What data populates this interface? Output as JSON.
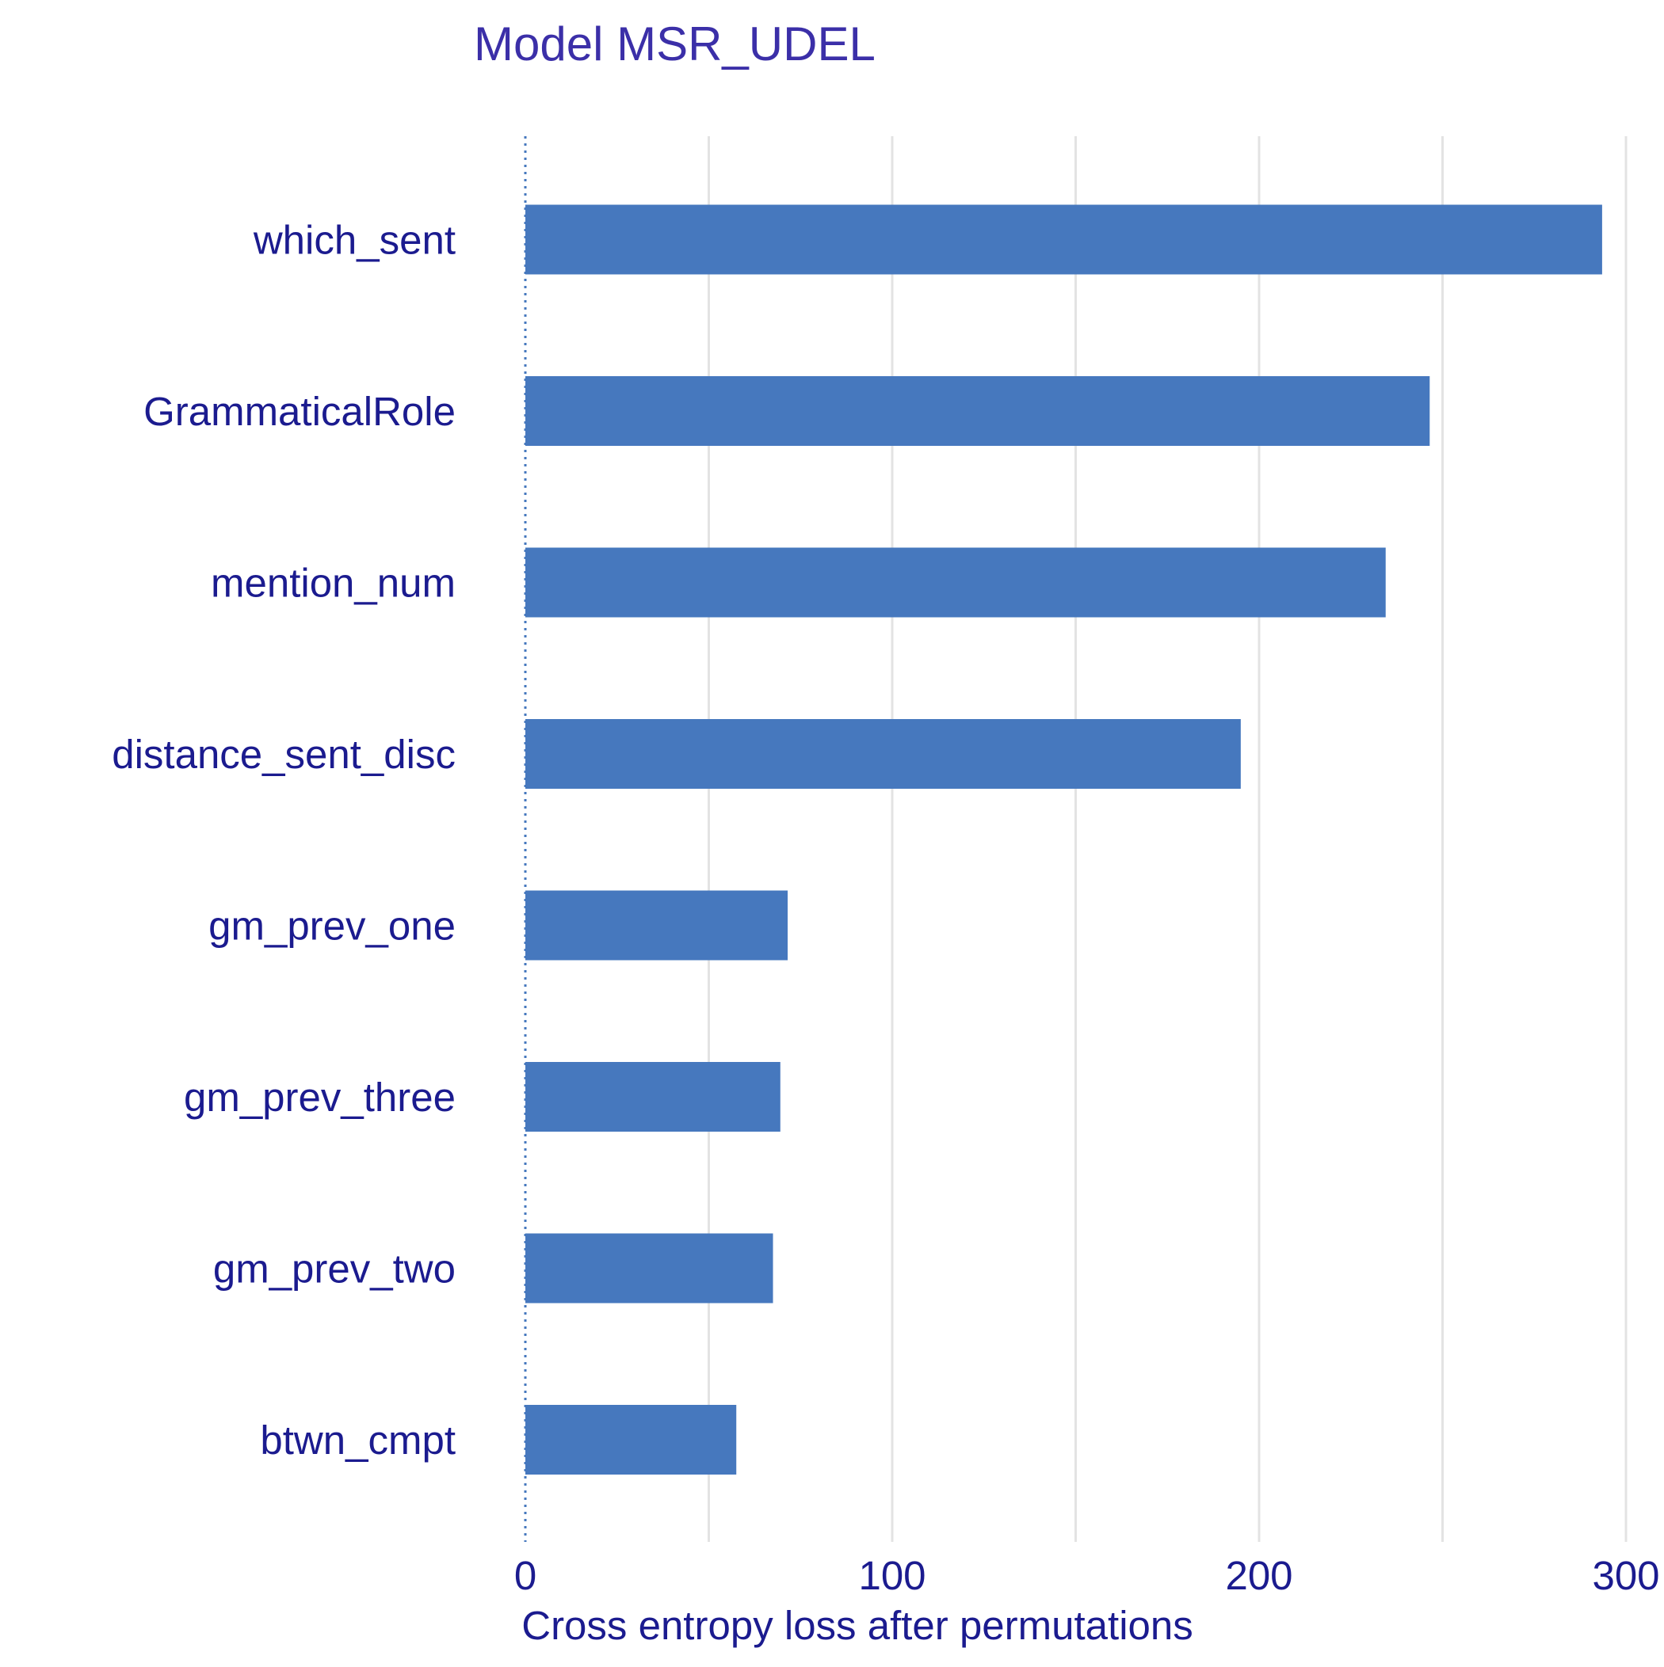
{
  "chart_data": {
    "type": "bar",
    "orientation": "horizontal",
    "title": "Model MSR_UDEL",
    "xlabel": "Cross entropy loss after permutations",
    "ylabel": "",
    "categories": [
      "which_sent",
      "GrammaticalRole",
      "mention_num",
      "distance_sent_disc",
      "gm_prev_one",
      "gm_prev_three",
      "gm_prev_two",
      "btwn_cmpt"
    ],
    "values": [
      293.5,
      246.5,
      234.5,
      195.0,
      71.5,
      69.5,
      67.5,
      57.5
    ],
    "xlim": [
      0,
      300
    ],
    "xticks": [
      0,
      100,
      200,
      300
    ],
    "x_minor_gridlines": [
      50,
      150,
      250
    ],
    "baseline": 0,
    "baseline_style": "dotted",
    "grid": true,
    "legend": "none",
    "colors": {
      "bar": "#4678BE",
      "title": "#3B2FA8",
      "text": "#1B1B8F",
      "grid": "#E3E3E3",
      "baseline": "#4678BE"
    }
  }
}
